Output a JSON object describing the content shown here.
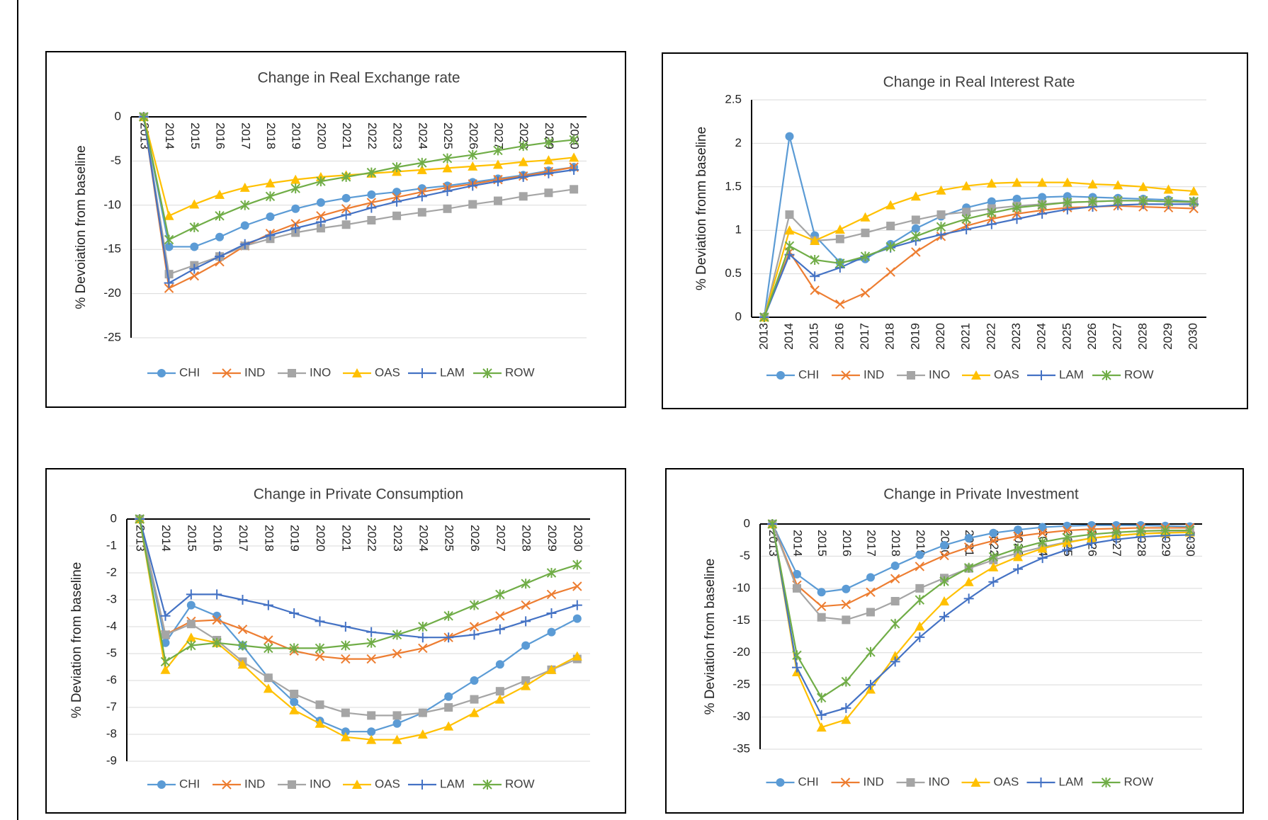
{
  "chart_data": [
    {
      "type": "line",
      "title": "Change in Real Exchange rate",
      "y_label": "% Devoiation from baseline",
      "categories": [
        "2013",
        "2014",
        "2015",
        "2016",
        "2017",
        "2018",
        "2019",
        "2020",
        "2021",
        "2022",
        "2023",
        "2024",
        "2025",
        "2026",
        "2027",
        "2028",
        "2029",
        "2030"
      ],
      "ylim": [
        -25,
        0
      ],
      "yticks": [
        0,
        -5,
        -10,
        -15,
        -20,
        -25
      ],
      "grid": true,
      "legend": "bottom",
      "series": [
        {
          "name": "CHI",
          "color": "#5b9bd5",
          "marker": "circle",
          "values": [
            0,
            -14.7,
            -14.7,
            -13.6,
            -12.3,
            -11.3,
            -10.4,
            -9.7,
            -9.2,
            -8.8,
            -8.5,
            -8.1,
            -7.8,
            -7.4,
            -7.0,
            -6.6,
            -6.1,
            -5.7
          ]
        },
        {
          "name": "IND",
          "color": "#ed7d31",
          "marker": "x",
          "values": [
            0,
            -19.4,
            -18.0,
            -16.4,
            -14.6,
            -13.2,
            -12.1,
            -11.2,
            -10.4,
            -9.7,
            -9.1,
            -8.5,
            -8.0,
            -7.6,
            -7.1,
            -6.7,
            -6.2,
            -5.7
          ]
        },
        {
          "name": "INO",
          "color": "#a5a5a5",
          "marker": "square",
          "values": [
            0,
            -17.8,
            -16.8,
            -15.8,
            -14.6,
            -13.8,
            -13.1,
            -12.6,
            -12.2,
            -11.7,
            -11.2,
            -10.8,
            -10.4,
            -9.9,
            -9.5,
            -9.0,
            -8.6,
            -8.2
          ]
        },
        {
          "name": "OAS",
          "color": "#ffc000",
          "marker": "triangle",
          "values": [
            0,
            -11.2,
            -9.9,
            -8.8,
            -8.0,
            -7.5,
            -7.1,
            -6.8,
            -6.6,
            -6.4,
            -6.2,
            -6.0,
            -5.8,
            -5.6,
            -5.4,
            -5.1,
            -4.9,
            -4.6
          ]
        },
        {
          "name": "LAM",
          "color": "#4472c4",
          "marker": "plus",
          "values": [
            0,
            -18.8,
            -17.2,
            -15.8,
            -14.4,
            -13.4,
            -12.6,
            -11.9,
            -11.1,
            -10.3,
            -9.6,
            -9.0,
            -8.4,
            -7.8,
            -7.3,
            -6.8,
            -6.4,
            -6.0
          ]
        },
        {
          "name": "ROW",
          "color": "#70ad47",
          "marker": "star",
          "values": [
            0,
            -13.9,
            -12.5,
            -11.2,
            -10.0,
            -9.0,
            -8.1,
            -7.3,
            -6.8,
            -6.3,
            -5.7,
            -5.2,
            -4.7,
            -4.3,
            -3.8,
            -3.3,
            -2.9,
            -2.6
          ]
        }
      ]
    },
    {
      "type": "line",
      "title": "Change in Real Interest Rate",
      "y_label": "% Deviation fronm baseline",
      "categories": [
        "2013",
        "2014",
        "2015",
        "2016",
        "2017",
        "2018",
        "2019",
        "2020",
        "2021",
        "2022",
        "2023",
        "2024",
        "2025",
        "2026",
        "2027",
        "2028",
        "2029",
        "2030"
      ],
      "ylim": [
        0,
        2.5
      ],
      "yticks": [
        0,
        0.5,
        1,
        1.5,
        2,
        2.5
      ],
      "grid": true,
      "legend": "bottom",
      "series": [
        {
          "name": "CHI",
          "color": "#5b9bd5",
          "marker": "circle",
          "values": [
            0,
            2.08,
            0.94,
            0.63,
            0.67,
            0.84,
            1.02,
            1.16,
            1.26,
            1.33,
            1.36,
            1.38,
            1.39,
            1.38,
            1.37,
            1.36,
            1.35,
            1.33
          ]
        },
        {
          "name": "IND",
          "color": "#ed7d31",
          "marker": "x",
          "values": [
            0,
            0.75,
            0.31,
            0.15,
            0.28,
            0.52,
            0.75,
            0.93,
            1.05,
            1.13,
            1.19,
            1.23,
            1.26,
            1.27,
            1.28,
            1.27,
            1.26,
            1.25
          ]
        },
        {
          "name": "INO",
          "color": "#a5a5a5",
          "marker": "square",
          "values": [
            0,
            1.18,
            0.88,
            0.9,
            0.97,
            1.05,
            1.12,
            1.18,
            1.21,
            1.25,
            1.28,
            1.3,
            1.32,
            1.33,
            1.34,
            1.34,
            1.33,
            1.32
          ]
        },
        {
          "name": "OAS",
          "color": "#ffc000",
          "marker": "triangle",
          "values": [
            0,
            1.0,
            0.88,
            1.01,
            1.15,
            1.29,
            1.39,
            1.46,
            1.51,
            1.54,
            1.55,
            1.55,
            1.55,
            1.53,
            1.52,
            1.5,
            1.47,
            1.45
          ]
        },
        {
          "name": "LAM",
          "color": "#4472c4",
          "marker": "plus",
          "values": [
            0,
            0.72,
            0.47,
            0.57,
            0.7,
            0.8,
            0.88,
            0.95,
            1.01,
            1.07,
            1.13,
            1.19,
            1.24,
            1.27,
            1.29,
            1.3,
            1.3,
            1.3
          ]
        },
        {
          "name": "ROW",
          "color": "#70ad47",
          "marker": "star",
          "values": [
            0,
            0.82,
            0.66,
            0.62,
            0.7,
            0.81,
            0.93,
            1.04,
            1.13,
            1.2,
            1.26,
            1.29,
            1.32,
            1.33,
            1.34,
            1.34,
            1.33,
            1.33
          ]
        }
      ]
    },
    {
      "type": "line",
      "title": "Change in Private Consumption",
      "y_label": "% Deviation from baseline",
      "categories": [
        "2013",
        "2014",
        "2015",
        "2016",
        "2017",
        "2018",
        "2019",
        "2020",
        "2021",
        "2022",
        "2023",
        "2024",
        "2025",
        "2026",
        "2027",
        "2028",
        "2029",
        "2030"
      ],
      "ylim": [
        -9,
        0
      ],
      "yticks": [
        0,
        -1,
        -2,
        -3,
        -4,
        -5,
        -6,
        -7,
        -8,
        -9
      ],
      "grid": true,
      "legend": "bottom",
      "series": [
        {
          "name": "CHI",
          "color": "#5b9bd5",
          "marker": "circle",
          "values": [
            0,
            -4.6,
            -3.2,
            -3.6,
            -4.7,
            -5.9,
            -6.8,
            -7.5,
            -7.9,
            -7.9,
            -7.6,
            -7.2,
            -6.6,
            -6.0,
            -5.4,
            -4.7,
            -4.2,
            -3.7
          ]
        },
        {
          "name": "IND",
          "color": "#ed7d31",
          "marker": "x",
          "values": [
            0,
            -4.3,
            -3.8,
            -3.75,
            -4.1,
            -4.5,
            -4.9,
            -5.1,
            -5.2,
            -5.2,
            -5.0,
            -4.8,
            -4.4,
            -4.0,
            -3.6,
            -3.2,
            -2.8,
            -2.5
          ]
        },
        {
          "name": "INO",
          "color": "#a5a5a5",
          "marker": "square",
          "values": [
            0,
            -4.3,
            -3.9,
            -4.5,
            -5.3,
            -5.9,
            -6.5,
            -6.9,
            -7.2,
            -7.3,
            -7.3,
            -7.2,
            -7.0,
            -6.7,
            -6.4,
            -6.0,
            -5.6,
            -5.2
          ]
        },
        {
          "name": "OAS",
          "color": "#ffc000",
          "marker": "triangle",
          "values": [
            0,
            -5.6,
            -4.4,
            -4.6,
            -5.4,
            -6.3,
            -7.1,
            -7.6,
            -8.1,
            -8.2,
            -8.2,
            -8.0,
            -7.7,
            -7.2,
            -6.7,
            -6.2,
            -5.6,
            -5.1
          ]
        },
        {
          "name": "LAM",
          "color": "#4472c4",
          "marker": "plus",
          "values": [
            0,
            -3.6,
            -2.8,
            -2.8,
            -3.0,
            -3.2,
            -3.5,
            -3.8,
            -4.0,
            -4.2,
            -4.3,
            -4.4,
            -4.4,
            -4.3,
            -4.1,
            -3.8,
            -3.5,
            -3.2
          ]
        },
        {
          "name": "ROW",
          "color": "#70ad47",
          "marker": "star",
          "values": [
            0,
            -5.3,
            -4.7,
            -4.6,
            -4.7,
            -4.8,
            -4.8,
            -4.8,
            -4.7,
            -4.6,
            -4.3,
            -4.0,
            -3.6,
            -3.2,
            -2.8,
            -2.4,
            -2.0,
            -1.7
          ]
        }
      ]
    },
    {
      "type": "line",
      "title": "Change in Private Investment",
      "y_label": "% Deviation from baseline",
      "categories": [
        "2013",
        "2014",
        "2015",
        "2016",
        "2017",
        "2018",
        "2019",
        "2020",
        "2021",
        "2022",
        "2023",
        "2024",
        "2025",
        "2026",
        "2027",
        "2028",
        "2029",
        "2030"
      ],
      "ylim": [
        -35,
        0
      ],
      "yticks": [
        0,
        -5,
        -10,
        -15,
        -20,
        -25,
        -30,
        -35
      ],
      "grid": true,
      "legend": "bottom",
      "series": [
        {
          "name": "CHI",
          "color": "#5b9bd5",
          "marker": "circle",
          "values": [
            0,
            -7.8,
            -10.6,
            -10.1,
            -8.3,
            -6.5,
            -4.8,
            -3.3,
            -2.2,
            -1.4,
            -0.9,
            -0.5,
            -0.3,
            -0.2,
            -0.2,
            -0.2,
            -0.3,
            -0.4
          ]
        },
        {
          "name": "IND",
          "color": "#ed7d31",
          "marker": "x",
          "values": [
            0,
            -9.5,
            -12.8,
            -12.5,
            -10.6,
            -8.5,
            -6.6,
            -4.9,
            -3.6,
            -2.6,
            -1.9,
            -1.4,
            -1.0,
            -0.8,
            -0.7,
            -0.6,
            -0.6,
            -0.6
          ]
        },
        {
          "name": "INO",
          "color": "#a5a5a5",
          "marker": "square",
          "values": [
            0,
            -10.0,
            -14.5,
            -14.9,
            -13.7,
            -12.0,
            -10.0,
            -8.4,
            -6.9,
            -5.6,
            -4.5,
            -3.6,
            -2.8,
            -2.2,
            -1.8,
            -1.5,
            -1.3,
            -1.2
          ]
        },
        {
          "name": "OAS",
          "color": "#ffc000",
          "marker": "triangle",
          "values": [
            0,
            -23.0,
            -31.6,
            -30.4,
            -25.7,
            -20.5,
            -15.9,
            -12.0,
            -9.0,
            -6.7,
            -5.1,
            -3.8,
            -2.9,
            -2.2,
            -1.8,
            -1.5,
            -1.4,
            -1.3
          ]
        },
        {
          "name": "LAM",
          "color": "#4472c4",
          "marker": "plus",
          "values": [
            0,
            -22.3,
            -29.7,
            -28.6,
            -25.0,
            -21.4,
            -17.6,
            -14.4,
            -11.6,
            -9.0,
            -7.0,
            -5.3,
            -4.0,
            -3.0,
            -2.4,
            -2.0,
            -1.8,
            -1.7
          ]
        },
        {
          "name": "ROW",
          "color": "#70ad47",
          "marker": "star",
          "values": [
            0,
            -20.4,
            -27.0,
            -24.5,
            -19.9,
            -15.5,
            -11.8,
            -8.9,
            -6.8,
            -5.1,
            -3.8,
            -2.8,
            -2.1,
            -1.6,
            -1.3,
            -1.1,
            -1.0,
            -1.0
          ]
        }
      ]
    }
  ]
}
